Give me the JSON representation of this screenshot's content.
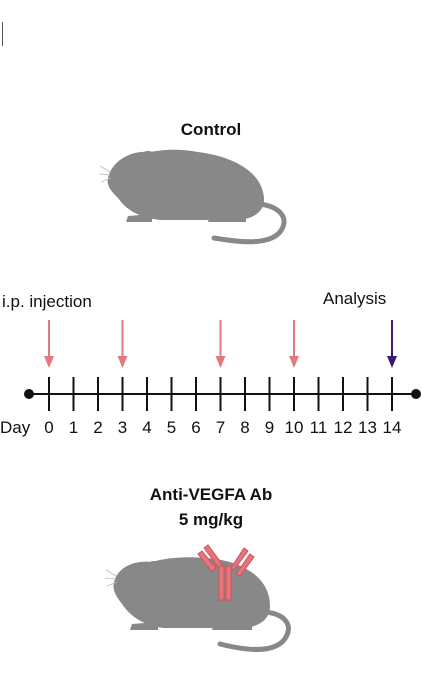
{
  "control": {
    "title": "Control"
  },
  "treatment": {
    "title_line1": "Anti-VEGFA Ab",
    "title_line2": "5 mg/kg"
  },
  "timeline": {
    "day_label": "Day",
    "days": [
      "0",
      "1",
      "2",
      "3",
      "4",
      "5",
      "6",
      "7",
      "8",
      "9",
      "10",
      "11",
      "12",
      "13",
      "14"
    ],
    "injection_label": "i.p. injection",
    "injection_days": [
      0,
      3,
      7,
      10
    ],
    "analysis_label": "Analysis",
    "analysis_day": 14
  },
  "colors": {
    "injection_arrow": "#e07a7f",
    "analysis_arrow": "#3b1a6e",
    "mouse": "#888888",
    "antibody": "#e8747a",
    "axis": "#111111"
  },
  "icons": {
    "control_mouse": "mouse-icon",
    "treated_mouse": "mouse-icon",
    "antibody": "antibody-icon"
  }
}
